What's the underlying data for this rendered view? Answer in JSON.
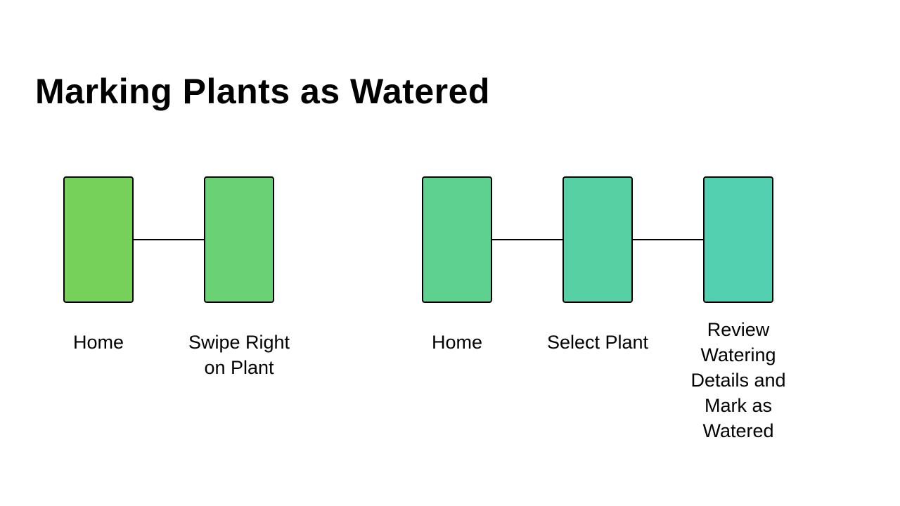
{
  "title": "Marking Plants as Watered",
  "flows": [
    {
      "steps": [
        {
          "label": "Home",
          "color": "#76d15a"
        },
        {
          "label": "Swipe Right on Plant",
          "color": "#6ad174"
        }
      ]
    },
    {
      "steps": [
        {
          "label": "Home",
          "color": "#5fd18f"
        },
        {
          "label": "Select Plant",
          "color": "#57d1a3"
        },
        {
          "label": "Review Watering Details and Mark as Watered",
          "color": "#53d0b0"
        }
      ]
    }
  ]
}
